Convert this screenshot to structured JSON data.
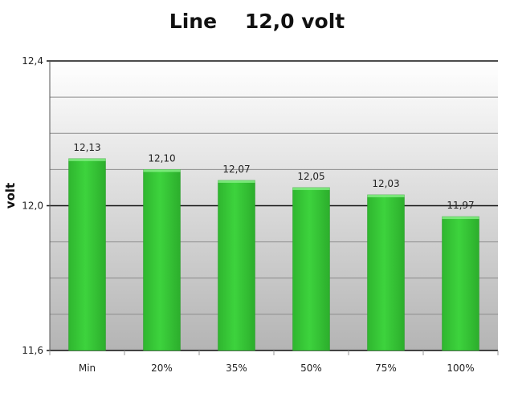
{
  "chart_data": {
    "type": "bar",
    "title": "Line    12,0 volt",
    "xlabel": "",
    "ylabel": "volt",
    "categories": [
      "Min",
      "20%",
      "35%",
      "50%",
      "75%",
      "100%"
    ],
    "values": [
      12.13,
      12.1,
      12.07,
      12.05,
      12.03,
      11.97
    ],
    "data_labels": [
      "12,13",
      "12,10",
      "12,07",
      "12,05",
      "12,03",
      "11,97"
    ],
    "ylim": [
      11.6,
      12.4
    ],
    "yticks": [
      11.6,
      12.0,
      12.4
    ],
    "ytick_labels": [
      "11,6",
      "12,0",
      "12,4"
    ],
    "minor_gridlines": [
      11.7,
      11.8,
      11.9,
      12.1,
      12.2,
      12.3
    ],
    "grid": true,
    "legend": "none",
    "bar_color": "#3dd33d",
    "background_gradient": [
      "#ffffff",
      "#b4b4b4"
    ]
  }
}
